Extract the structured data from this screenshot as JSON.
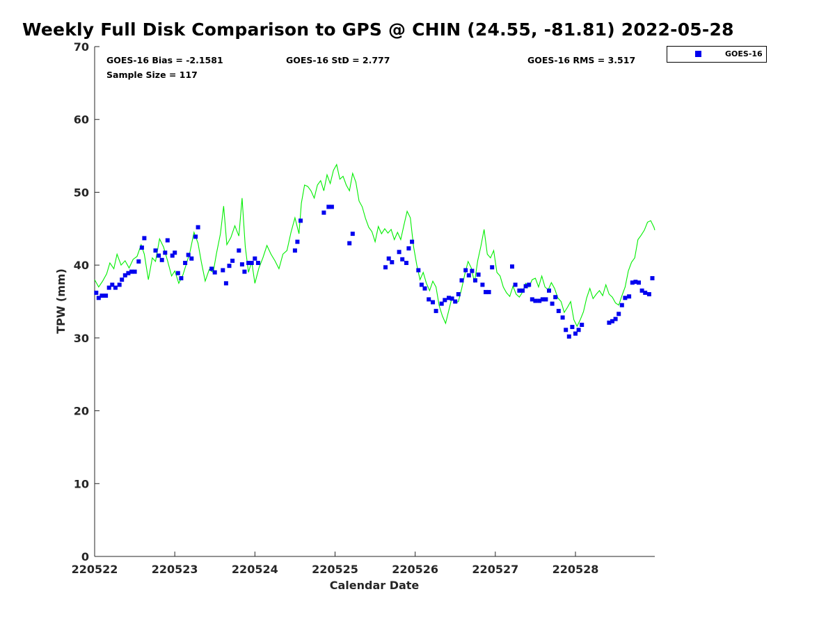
{
  "chart_data": {
    "type": "scatter",
    "title": "Weekly Full Disk Comparison to GPS @ CHIN (24.55, -81.81) 2022-05-28",
    "xlabel": "Calendar Date",
    "ylabel": "TPW (mm)",
    "xlim": [
      0,
      6.99
    ],
    "ylim": [
      0,
      70
    ],
    "x_ticks": [
      0,
      1,
      2,
      3,
      4,
      5,
      6
    ],
    "x_tick_labels": [
      "220522",
      "220523",
      "220524",
      "220525",
      "220526",
      "220527",
      "220528"
    ],
    "y_ticks": [
      0,
      10,
      20,
      30,
      40,
      50,
      60,
      70
    ],
    "grid": false,
    "legend": {
      "position": "top-right-outside",
      "entries": [
        "GOES-16"
      ]
    },
    "annotations": {
      "bias": "GOES-16 Bias = -2.1581",
      "std": "GOES-16 StD = 2.777",
      "rms": "GOES-16 RMS = 3.517",
      "sample": "Sample Size = 117"
    },
    "colors": {
      "goes": "#0000ee",
      "gps": "#00ee00"
    },
    "series": [
      {
        "name": "GOES-16",
        "marker": "square",
        "color": "#0000ee",
        "points": [
          [
            0.02,
            36.2
          ],
          [
            0.05,
            35.5
          ],
          [
            0.09,
            35.8
          ],
          [
            0.14,
            35.8
          ],
          [
            0.18,
            36.9
          ],
          [
            0.22,
            37.3
          ],
          [
            0.26,
            36.9
          ],
          [
            0.31,
            37.3
          ],
          [
            0.34,
            38.0
          ],
          [
            0.38,
            38.6
          ],
          [
            0.42,
            38.9
          ],
          [
            0.46,
            39.1
          ],
          [
            0.5,
            39.1
          ],
          [
            0.55,
            40.5
          ],
          [
            0.59,
            42.4
          ],
          [
            0.62,
            43.7
          ],
          [
            0.76,
            42.0
          ],
          [
            0.8,
            41.3
          ],
          [
            0.84,
            40.7
          ],
          [
            0.88,
            41.7
          ],
          [
            0.91,
            43.4
          ],
          [
            0.97,
            41.3
          ],
          [
            1.0,
            41.7
          ],
          [
            1.04,
            38.9
          ],
          [
            1.08,
            38.2
          ],
          [
            1.13,
            40.3
          ],
          [
            1.17,
            41.4
          ],
          [
            1.21,
            40.9
          ],
          [
            1.26,
            43.9
          ],
          [
            1.29,
            45.2
          ],
          [
            1.46,
            39.5
          ],
          [
            1.5,
            39.0
          ],
          [
            1.6,
            39.3
          ],
          [
            1.64,
            37.5
          ],
          [
            1.68,
            39.9
          ],
          [
            1.72,
            40.6
          ],
          [
            1.8,
            42.0
          ],
          [
            1.84,
            40.1
          ],
          [
            1.87,
            39.1
          ],
          [
            1.92,
            40.3
          ],
          [
            1.96,
            40.3
          ],
          [
            2.0,
            40.9
          ],
          [
            2.04,
            40.3
          ],
          [
            2.5,
            42.0
          ],
          [
            2.53,
            43.2
          ],
          [
            2.57,
            46.1
          ],
          [
            2.86,
            47.2
          ],
          [
            2.92,
            48.0
          ],
          [
            2.96,
            48.0
          ],
          [
            3.18,
            43.0
          ],
          [
            3.22,
            44.3
          ],
          [
            3.63,
            39.7
          ],
          [
            3.67,
            40.9
          ],
          [
            3.71,
            40.4
          ],
          [
            3.8,
            41.8
          ],
          [
            3.84,
            40.8
          ],
          [
            3.89,
            40.3
          ],
          [
            3.92,
            42.3
          ],
          [
            3.96,
            43.2
          ],
          [
            4.04,
            39.3
          ],
          [
            4.08,
            37.3
          ],
          [
            4.12,
            36.8
          ],
          [
            4.17,
            35.3
          ],
          [
            4.22,
            34.9
          ],
          [
            4.26,
            33.7
          ],
          [
            4.33,
            34.7
          ],
          [
            4.37,
            35.2
          ],
          [
            4.42,
            35.5
          ],
          [
            4.46,
            35.4
          ],
          [
            4.5,
            35.0
          ],
          [
            4.54,
            36.0
          ],
          [
            4.58,
            37.9
          ],
          [
            4.63,
            39.3
          ],
          [
            4.67,
            38.6
          ],
          [
            4.71,
            39.2
          ],
          [
            4.75,
            37.9
          ],
          [
            4.79,
            38.7
          ],
          [
            4.84,
            37.3
          ],
          [
            4.88,
            36.3
          ],
          [
            4.92,
            36.3
          ],
          [
            4.96,
            39.7
          ],
          [
            5.21,
            39.8
          ],
          [
            5.25,
            37.3
          ],
          [
            5.3,
            36.5
          ],
          [
            5.34,
            36.5
          ],
          [
            5.38,
            37.1
          ],
          [
            5.42,
            37.3
          ],
          [
            5.46,
            35.3
          ],
          [
            5.5,
            35.1
          ],
          [
            5.55,
            35.1
          ],
          [
            5.59,
            35.3
          ],
          [
            5.63,
            35.3
          ],
          [
            5.67,
            36.5
          ],
          [
            5.71,
            34.7
          ],
          [
            5.75,
            35.6
          ],
          [
            5.79,
            33.7
          ],
          [
            5.84,
            32.8
          ],
          [
            5.88,
            31.1
          ],
          [
            5.92,
            30.2
          ],
          [
            5.96,
            31.5
          ],
          [
            6.0,
            30.6
          ],
          [
            6.04,
            31.1
          ],
          [
            6.08,
            31.8
          ],
          [
            6.42,
            32.1
          ],
          [
            6.46,
            32.3
          ],
          [
            6.5,
            32.6
          ],
          [
            6.54,
            33.3
          ],
          [
            6.58,
            34.5
          ],
          [
            6.62,
            35.5
          ],
          [
            6.67,
            35.7
          ],
          [
            6.71,
            37.6
          ],
          [
            6.75,
            37.7
          ],
          [
            6.79,
            37.6
          ],
          [
            6.83,
            36.5
          ],
          [
            6.87,
            36.2
          ],
          [
            6.92,
            36.0
          ],
          [
            6.96,
            38.2
          ]
        ]
      },
      {
        "name": "GPS",
        "marker": "line",
        "color": "#00ee00",
        "points": [
          [
            0.0,
            38.0
          ],
          [
            0.05,
            37.0
          ],
          [
            0.1,
            37.8
          ],
          [
            0.15,
            38.8
          ],
          [
            0.19,
            40.3
          ],
          [
            0.24,
            39.5
          ],
          [
            0.28,
            41.5
          ],
          [
            0.33,
            40.0
          ],
          [
            0.38,
            40.6
          ],
          [
            0.43,
            39.6
          ],
          [
            0.48,
            40.8
          ],
          [
            0.53,
            41.2
          ],
          [
            0.58,
            42.8
          ],
          [
            0.62,
            41.5
          ],
          [
            0.67,
            38.0
          ],
          [
            0.72,
            41.0
          ],
          [
            0.76,
            40.5
          ],
          [
            0.81,
            43.6
          ],
          [
            0.86,
            42.5
          ],
          [
            0.91,
            40.6
          ],
          [
            0.96,
            38.5
          ],
          [
            1.0,
            39.2
          ],
          [
            1.05,
            37.5
          ],
          [
            1.1,
            38.6
          ],
          [
            1.14,
            40.0
          ],
          [
            1.19,
            41.8
          ],
          [
            1.24,
            44.5
          ],
          [
            1.29,
            43.0
          ],
          [
            1.33,
            40.5
          ],
          [
            1.38,
            37.8
          ],
          [
            1.43,
            39.4
          ],
          [
            1.48,
            39.0
          ],
          [
            1.52,
            41.6
          ],
          [
            1.57,
            44.3
          ],
          [
            1.61,
            48.1
          ],
          [
            1.65,
            42.8
          ],
          [
            1.7,
            43.8
          ],
          [
            1.75,
            45.4
          ],
          [
            1.8,
            44.0
          ],
          [
            1.84,
            49.2
          ],
          [
            1.88,
            42.5
          ],
          [
            1.92,
            39.0
          ],
          [
            1.96,
            40.5
          ],
          [
            2.0,
            37.5
          ],
          [
            2.05,
            39.6
          ],
          [
            2.1,
            41.0
          ],
          [
            2.15,
            42.7
          ],
          [
            2.2,
            41.5
          ],
          [
            2.25,
            40.6
          ],
          [
            2.3,
            39.5
          ],
          [
            2.35,
            41.5
          ],
          [
            2.4,
            42.0
          ],
          [
            2.45,
            44.5
          ],
          [
            2.5,
            46.5
          ],
          [
            2.55,
            44.3
          ],
          [
            2.58,
            48.5
          ],
          [
            2.62,
            51.0
          ],
          [
            2.66,
            50.8
          ],
          [
            2.7,
            50.2
          ],
          [
            2.74,
            49.2
          ],
          [
            2.78,
            51.0
          ],
          [
            2.82,
            51.6
          ],
          [
            2.86,
            50.2
          ],
          [
            2.9,
            52.4
          ],
          [
            2.94,
            51.2
          ],
          [
            2.98,
            53.0
          ],
          [
            3.02,
            53.8
          ],
          [
            3.06,
            51.8
          ],
          [
            3.1,
            52.2
          ],
          [
            3.14,
            51.0
          ],
          [
            3.18,
            50.2
          ],
          [
            3.22,
            52.6
          ],
          [
            3.26,
            51.4
          ],
          [
            3.3,
            48.8
          ],
          [
            3.34,
            48.0
          ],
          [
            3.38,
            46.4
          ],
          [
            3.42,
            45.2
          ],
          [
            3.46,
            44.6
          ],
          [
            3.5,
            43.2
          ],
          [
            3.54,
            45.3
          ],
          [
            3.58,
            44.3
          ],
          [
            3.62,
            45.0
          ],
          [
            3.66,
            44.4
          ],
          [
            3.7,
            44.9
          ],
          [
            3.74,
            43.5
          ],
          [
            3.78,
            44.5
          ],
          [
            3.82,
            43.5
          ],
          [
            3.86,
            45.5
          ],
          [
            3.9,
            47.4
          ],
          [
            3.94,
            46.5
          ],
          [
            3.98,
            42.5
          ],
          [
            4.02,
            40.0
          ],
          [
            4.06,
            38.0
          ],
          [
            4.1,
            39.0
          ],
          [
            4.14,
            37.5
          ],
          [
            4.18,
            36.5
          ],
          [
            4.22,
            37.8
          ],
          [
            4.26,
            37.0
          ],
          [
            4.3,
            34.4
          ],
          [
            4.34,
            33.0
          ],
          [
            4.38,
            32.0
          ],
          [
            4.42,
            33.8
          ],
          [
            4.46,
            35.6
          ],
          [
            4.5,
            34.8
          ],
          [
            4.54,
            35.0
          ],
          [
            4.58,
            36.8
          ],
          [
            4.62,
            38.8
          ],
          [
            4.66,
            40.5
          ],
          [
            4.7,
            39.6
          ],
          [
            4.74,
            37.6
          ],
          [
            4.78,
            40.6
          ],
          [
            4.82,
            42.6
          ],
          [
            4.86,
            44.9
          ],
          [
            4.9,
            41.5
          ],
          [
            4.94,
            41.0
          ],
          [
            4.98,
            42.0
          ],
          [
            5.02,
            39.0
          ],
          [
            5.06,
            38.5
          ],
          [
            5.1,
            37.0
          ],
          [
            5.14,
            36.2
          ],
          [
            5.18,
            35.7
          ],
          [
            5.22,
            37.1
          ],
          [
            5.26,
            36.0
          ],
          [
            5.3,
            35.6
          ],
          [
            5.34,
            36.3
          ],
          [
            5.38,
            37.5
          ],
          [
            5.42,
            37.0
          ],
          [
            5.46,
            38.0
          ],
          [
            5.5,
            38.2
          ],
          [
            5.54,
            37.0
          ],
          [
            5.58,
            38.5
          ],
          [
            5.62,
            37.0
          ],
          [
            5.66,
            36.6
          ],
          [
            5.7,
            37.6
          ],
          [
            5.74,
            36.8
          ],
          [
            5.78,
            35.5
          ],
          [
            5.82,
            35.0
          ],
          [
            5.86,
            33.5
          ],
          [
            5.9,
            34.2
          ],
          [
            5.94,
            35.0
          ],
          [
            5.98,
            32.5
          ],
          [
            6.02,
            31.6
          ],
          [
            6.06,
            32.5
          ],
          [
            6.1,
            33.6
          ],
          [
            6.14,
            35.5
          ],
          [
            6.18,
            36.8
          ],
          [
            6.22,
            35.4
          ],
          [
            6.26,
            36.0
          ],
          [
            6.3,
            36.5
          ],
          [
            6.34,
            35.8
          ],
          [
            6.38,
            37.3
          ],
          [
            6.42,
            36.0
          ],
          [
            6.46,
            35.6
          ],
          [
            6.5,
            34.8
          ],
          [
            6.54,
            34.5
          ],
          [
            6.58,
            35.8
          ],
          [
            6.62,
            37.0
          ],
          [
            6.66,
            39.2
          ],
          [
            6.7,
            40.4
          ],
          [
            6.74,
            41.0
          ],
          [
            6.78,
            43.5
          ],
          [
            6.82,
            44.1
          ],
          [
            6.86,
            44.8
          ],
          [
            6.9,
            45.9
          ],
          [
            6.94,
            46.1
          ],
          [
            6.98,
            45.2
          ],
          [
            6.99,
            44.8
          ]
        ]
      }
    ]
  }
}
